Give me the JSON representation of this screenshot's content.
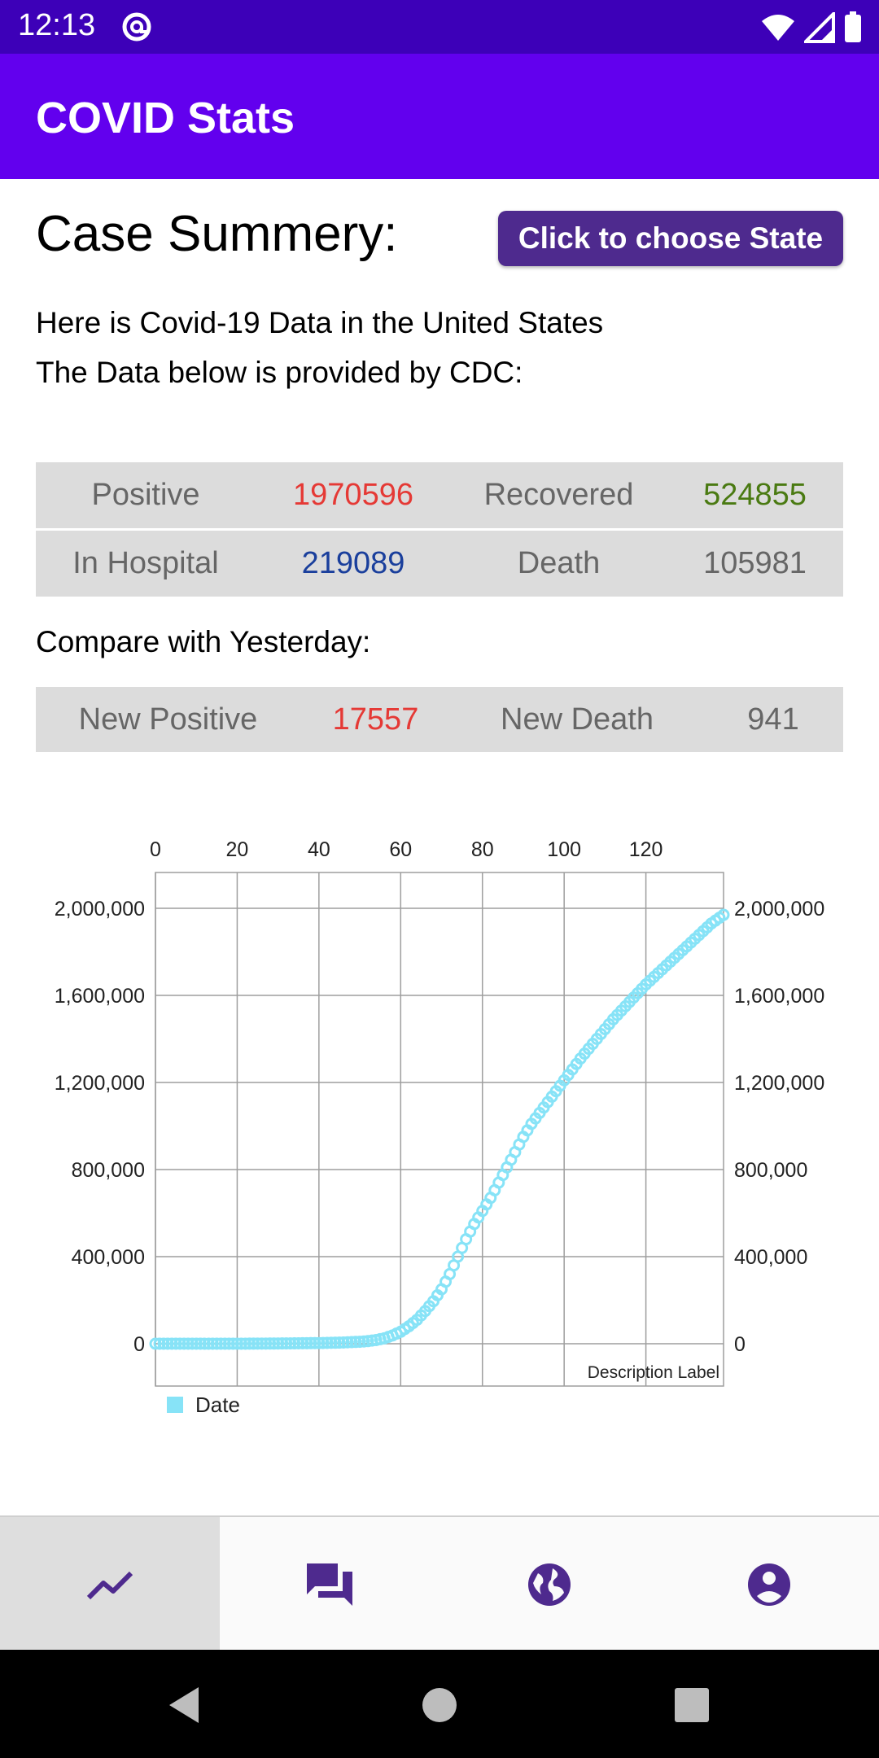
{
  "status_bar": {
    "time": "12:13"
  },
  "app_bar": {
    "title": "COVID Stats"
  },
  "summary": {
    "title": "Case Summery:",
    "choose_state_label": "Click to choose State",
    "intro_line1": "Here is Covid-19 Data in the United States",
    "intro_line2": "The Data below is provided by CDC:"
  },
  "stats": {
    "positive_label": "Positive",
    "positive_value": "1970596",
    "recovered_label": "Recovered",
    "recovered_value": "524855",
    "hospital_label": "In Hospital",
    "hospital_value": "219089",
    "death_label": "Death",
    "death_value": "105981"
  },
  "compare": {
    "label": "Compare with Yesterday:",
    "new_positive_label": "New Positive",
    "new_positive_value": "17557",
    "new_death_label": "New Death",
    "new_death_value": "941"
  },
  "colors": {
    "positive": "#e53935",
    "recovered": "#4a7a12",
    "hospital": "#1a3f9c",
    "series": "#87e3f7",
    "primary": "#6200ee",
    "status": "#3d00b8",
    "icon": "#4e2a8e"
  },
  "chart_data": {
    "type": "scatter",
    "x_ticks": [
      "0",
      "20",
      "40",
      "60",
      "80",
      "100",
      "120"
    ],
    "y_ticks": [
      "0",
      "400,000",
      "800,000",
      "1,200,000",
      "1,600,000",
      "2,000,000"
    ],
    "xlim": [
      0,
      139
    ],
    "ylim": [
      0,
      2000000
    ],
    "description": "Description Label",
    "legend": "Date",
    "legend_position": "bottom-left",
    "grid": true,
    "x_axis_position": "top",
    "y_axis_sides": [
      "left",
      "right"
    ],
    "series": [
      {
        "name": "Date",
        "x": [
          0,
          10,
          20,
          30,
          40,
          45,
          50,
          52,
          54,
          56,
          58,
          60,
          62,
          64,
          66,
          68,
          70,
          72,
          74,
          76,
          78,
          80,
          82,
          84,
          86,
          88,
          90,
          92,
          94,
          96,
          98,
          100,
          104,
          108,
          112,
          116,
          120,
          124,
          128,
          132,
          136,
          139
        ],
        "y": [
          0,
          0,
          0,
          1000,
          3000,
          5000,
          9000,
          12000,
          17000,
          25000,
          38000,
          55000,
          80000,
          110000,
          150000,
          195000,
          250000,
          320000,
          400000,
          480000,
          550000,
          610000,
          670000,
          740000,
          810000,
          880000,
          950000,
          1010000,
          1060000,
          1110000,
          1160000,
          1210000,
          1310000,
          1400000,
          1490000,
          1570000,
          1650000,
          1720000,
          1790000,
          1860000,
          1930000,
          1970000
        ]
      }
    ]
  },
  "nav": {
    "items": [
      {
        "icon": "trending-icon"
      },
      {
        "icon": "chat-icon"
      },
      {
        "icon": "globe-icon"
      },
      {
        "icon": "account-icon"
      }
    ]
  }
}
